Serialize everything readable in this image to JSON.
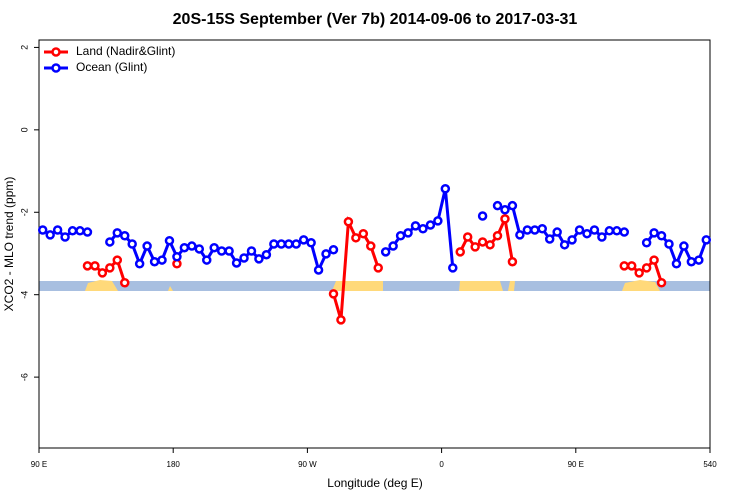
{
  "chart_data": {
    "type": "line",
    "title": "20S-15S September (Ver 7b)   2014-09-06 to 2017-03-31",
    "x_label": "Longitude (deg E)",
    "y_label": "XCO2 - MLO trend (ppm)",
    "x": [
      92.5,
      97.5,
      102.5,
      107.5,
      112.5,
      117.5,
      122.5,
      127.5,
      132.5,
      137.5,
      142.5,
      147.5,
      152.5,
      157.5,
      162.5,
      167.5,
      172.5,
      177.5,
      182.5,
      187.5,
      192.5,
      197.5,
      202.5,
      207.5,
      212.5,
      217.5,
      222.5,
      227.5,
      232.5,
      237.5,
      242.5,
      247.5,
      252.5,
      257.5,
      262.5,
      267.5,
      272.5,
      277.5,
      282.5,
      287.5,
      292.5,
      297.5,
      302.5,
      307.5,
      312.5,
      317.5,
      322.5,
      327.5,
      332.5,
      337.5,
      342.5,
      347.5,
      352.5,
      357.5,
      362.5,
      367.5,
      372.5,
      377.5,
      382.5,
      387.5,
      392.5,
      397.5,
      402.5,
      407.5,
      412.5,
      417.5,
      422.5,
      427.5,
      432.5,
      437.5,
      442.5,
      447.5,
      452.5,
      457.5,
      462.5,
      467.5,
      472.5,
      477.5,
      482.5,
      487.5,
      492.5,
      497.5,
      502.5,
      507.5,
      512.5,
      517.5,
      522.5,
      527.5,
      532.5,
      537.5
    ],
    "series": [
      {
        "name": "Land (Nadir&Glint)",
        "color": "#ff0000",
        "values": [
          null,
          null,
          null,
          null,
          null,
          null,
          -3.3,
          -3.3,
          -3.47,
          -3.35,
          -3.16,
          -3.71,
          null,
          null,
          null,
          null,
          null,
          null,
          -3.25,
          null,
          null,
          null,
          null,
          null,
          null,
          null,
          null,
          null,
          null,
          null,
          null,
          null,
          null,
          null,
          null,
          null,
          null,
          null,
          null,
          -3.98,
          -4.61,
          -2.23,
          -2.62,
          -2.52,
          -2.82,
          -3.35,
          null,
          null,
          null,
          null,
          null,
          null,
          null,
          null,
          null,
          null,
          -2.96,
          -2.6,
          -2.84,
          -2.72,
          -2.79,
          -2.57,
          -2.16,
          -3.2,
          null,
          null,
          null,
          null,
          null,
          null,
          null,
          null,
          null,
          null,
          null,
          null,
          null,
          null,
          -3.3,
          -3.3,
          -3.47,
          -3.35,
          -3.16,
          -3.71,
          null,
          null,
          null,
          null,
          null,
          null
        ]
      },
      {
        "name": "Ocean (Glint)",
        "color": "#0000ff",
        "values": [
          -2.43,
          -2.55,
          -2.43,
          -2.6,
          -2.45,
          -2.45,
          -2.48,
          null,
          null,
          -2.72,
          -2.5,
          -2.57,
          -2.77,
          -3.25,
          -2.82,
          -3.2,
          -3.16,
          -2.69,
          -3.08,
          -2.86,
          -2.82,
          -2.89,
          -3.16,
          -2.86,
          -2.94,
          -2.94,
          -3.23,
          -3.11,
          -2.94,
          -3.13,
          -3.03,
          -2.77,
          -2.77,
          -2.77,
          -2.77,
          -2.67,
          -2.74,
          -3.4,
          -3.01,
          -2.91,
          null,
          null,
          null,
          null,
          null,
          null,
          -2.96,
          -2.82,
          -2.57,
          -2.5,
          -2.33,
          -2.4,
          -2.31,
          -2.21,
          -1.43,
          -3.35,
          null,
          null,
          null,
          -2.09,
          null,
          -1.84,
          -1.94,
          -1.84,
          -2.55,
          -2.43,
          -2.43,
          -2.4,
          -2.65,
          -2.48,
          -2.79,
          -2.67,
          -2.43,
          -2.52,
          -2.43,
          -2.6,
          -2.45,
          -2.45,
          -2.48,
          null,
          null,
          -2.74,
          -2.5,
          -2.57,
          -2.77,
          -3.25,
          -2.82,
          -3.2,
          -3.16,
          -2.67
        ]
      }
    ],
    "xlim": [
      90,
      540
    ],
    "xticks": [
      {
        "value": 90,
        "label": "90 E"
      },
      180,
      {
        "value": 270,
        "label": "90 W"
      },
      {
        "value": 360,
        "label": "0"
      },
      {
        "value": 450,
        "label": "90 E"
      },
      540
    ],
    "ylim": [
      -7.72,
      2.18
    ],
    "yticks": [
      2,
      0,
      -2,
      -4,
      -6
    ],
    "legend": "top-left"
  }
}
